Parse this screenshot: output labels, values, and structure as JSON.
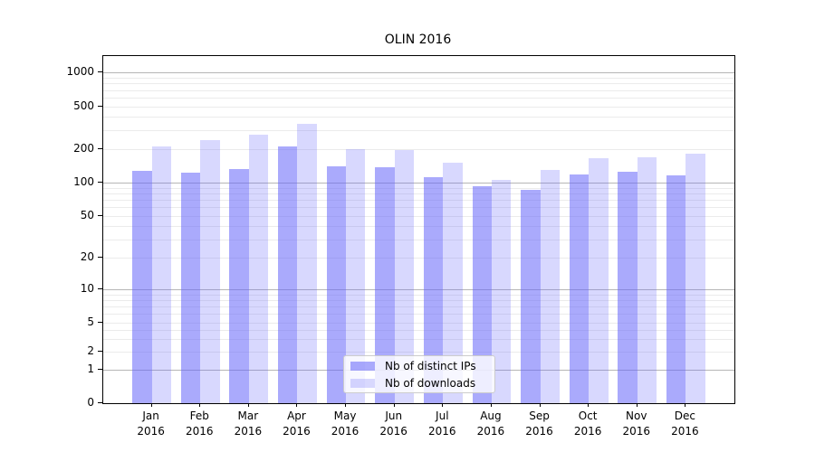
{
  "title": "OLIN 2016",
  "chart_data": {
    "type": "bar",
    "title": "OLIN 2016",
    "categories": [
      "Jan",
      "Feb",
      "Mar",
      "Apr",
      "May",
      "Jun",
      "Jul",
      "Aug",
      "Sep",
      "Oct",
      "Nov",
      "Dec"
    ],
    "year": "2016",
    "series": [
      {
        "name": "Nb of distinct IPs",
        "color": "#aaaaf8",
        "css_color": "rgba(100,100,250,0.55)",
        "values": [
          127,
          123,
          134,
          214,
          141,
          138,
          112,
          93,
          87,
          120,
          126,
          117
        ]
      },
      {
        "name": "Nb of downloads",
        "color": "#d9d9fb",
        "css_color": "rgba(100,100,250,0.25)",
        "values": [
          212,
          241,
          272,
          347,
          199,
          197,
          151,
          107,
          130,
          166,
          168,
          181
        ]
      }
    ],
    "yscale": "symlog",
    "yticks": [
      0,
      1,
      2,
      5,
      10,
      20,
      50,
      100,
      200,
      500,
      1000
    ],
    "major_grid_values": [
      1,
      10,
      100,
      1000
    ],
    "ylim": [
      0,
      1500
    ],
    "grid": "horizontal major + minor log gridlines",
    "legend_position": "lower center"
  }
}
